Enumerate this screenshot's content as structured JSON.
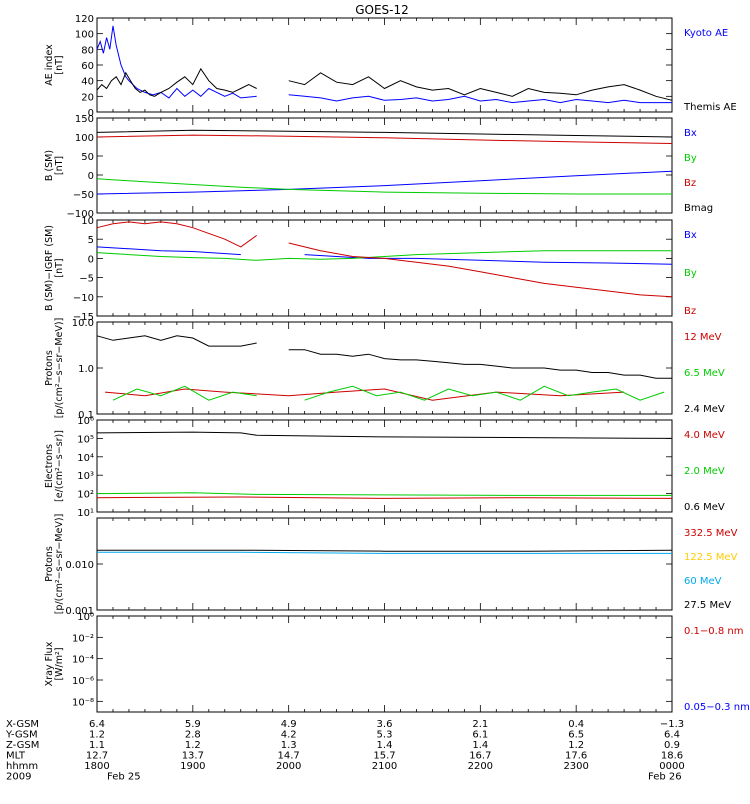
{
  "chart_data": {
    "type": "line",
    "title": "GOES-12",
    "panels": [
      {
        "id": "ae",
        "ylabel": [
          "AE index",
          "[nT]"
        ],
        "yscale": "linear",
        "ylim": [
          0,
          120
        ],
        "yticks": [
          {
            "v": 0,
            "t": "0"
          },
          {
            "v": 20,
            "t": "20"
          },
          {
            "v": 40,
            "t": "40"
          },
          {
            "v": 60,
            "t": "60"
          },
          {
            "v": 80,
            "t": "80"
          },
          {
            "v": 100,
            "t": "100"
          },
          {
            "v": 120,
            "t": "120"
          }
        ],
        "series": [
          {
            "name": "Kyoto AE",
            "color": "#0000ff",
            "x": [
              0,
              2,
              4,
              6,
              8,
              10,
              12,
              15,
              18,
              20,
              25,
              30,
              35,
              40,
              45,
              50,
              55,
              60,
              65,
              70,
              75,
              80,
              85,
              90,
              100,
              110,
              120,
              130,
              140,
              150,
              160,
              170,
              180,
              190,
              200,
              210,
              220,
              230,
              240,
              250,
              260,
              270,
              280,
              290,
              300,
              310,
              320,
              330,
              340,
              350,
              360
            ],
            "y": [
              80,
              90,
              75,
              95,
              80,
              110,
              85,
              60,
              45,
              40,
              30,
              25,
              22,
              25,
              18,
              30,
              20,
              28,
              20,
              30,
              25,
              20,
              24,
              18,
              20,
              16,
              22,
              20,
              18,
              14,
              18,
              20,
              15,
              16,
              18,
              14,
              16,
              20,
              14,
              16,
              12,
              14,
              16,
              12,
              16,
              14,
              12,
              15,
              12,
              12,
              12
            ]
          },
          {
            "name": "Themis AE",
            "color": "#000000",
            "x": [
              0,
              3,
              6,
              9,
              12,
              15,
              18,
              21,
              24,
              27,
              30,
              33,
              36,
              40,
              45,
              50,
              55,
              60,
              65,
              70,
              75,
              80,
              85,
              90,
              95,
              100,
              110,
              120,
              130,
              140,
              150,
              160,
              170,
              180,
              190,
              200,
              210,
              220,
              230,
              240,
              250,
              260,
              270,
              280,
              290,
              300,
              310,
              320,
              330,
              340,
              350,
              360
            ],
            "y": [
              28,
              35,
              30,
              40,
              45,
              35,
              50,
              40,
              30,
              25,
              28,
              22,
              20,
              25,
              30,
              38,
              45,
              35,
              55,
              40,
              30,
              28,
              25,
              30,
              35,
              30,
              35,
              40,
              35,
              50,
              38,
              35,
              45,
              30,
              40,
              32,
              28,
              30,
              22,
              30,
              25,
              20,
              30,
              25,
              24,
              22,
              28,
              32,
              35,
              28,
              20,
              15
            ]
          }
        ]
      },
      {
        "id": "b",
        "ylabel": [
          "B (SM)",
          "[nT]"
        ],
        "yscale": "linear",
        "ylim": [
          -100,
          150
        ],
        "yticks": [
          {
            "v": -100,
            "t": "−100"
          },
          {
            "v": -50,
            "t": "−50"
          },
          {
            "v": 0,
            "t": "0"
          },
          {
            "v": 50,
            "t": "50"
          },
          {
            "v": 100,
            "t": "100"
          },
          {
            "v": 150,
            "t": "150"
          }
        ],
        "series": [
          {
            "name": "Bx",
            "color": "#0000ff",
            "x": [
              0,
              60,
              120,
              180,
              240,
              300,
              360
            ],
            "y": [
              -50,
              -45,
              -38,
              -28,
              -15,
              -2,
              10
            ]
          },
          {
            "name": "By",
            "color": "#00cc00",
            "x": [
              0,
              30,
              60,
              90,
              120,
              180,
              240,
              300,
              360
            ],
            "y": [
              -10,
              -18,
              -25,
              -32,
              -38,
              -45,
              -48,
              -50,
              -50
            ]
          },
          {
            "name": "Bz",
            "color": "#cc0000",
            "x": [
              0,
              60,
              120,
              180,
              240,
              300,
              360
            ],
            "y": [
              100,
              105,
              102,
              98,
              92,
              87,
              83
            ]
          },
          {
            "name": "Bmag",
            "color": "#000000",
            "x": [
              0,
              60,
              120,
              180,
              240,
              300,
              360
            ],
            "y": [
              112,
              118,
              115,
              112,
              108,
              104,
              100
            ]
          }
        ]
      },
      {
        "id": "bdiff",
        "ylabel": [
          "B (SM)−IGRF (SM)",
          "[nT]"
        ],
        "yscale": "linear",
        "ylim": [
          -15,
          10
        ],
        "yticks": [
          {
            "v": -15,
            "t": "−15"
          },
          {
            "v": -10,
            "t": "−10"
          },
          {
            "v": -5,
            "t": "−5"
          },
          {
            "v": 0,
            "t": "0"
          },
          {
            "v": 5,
            "t": "5"
          },
          {
            "v": 10,
            "t": "10"
          }
        ],
        "series": [
          {
            "name": "Bx",
            "color": "#0000ff",
            "x": [
              0,
              20,
              40,
              60,
              90,
              110,
              130,
              150,
              170,
              200,
              240,
              280,
              320,
              360
            ],
            "y": [
              3,
              2.5,
              2,
              1.8,
              1,
              2,
              1,
              0.5,
              0,
              0,
              -0.5,
              -1,
              -1.2,
              -1.5
            ]
          },
          {
            "name": "By",
            "color": "#00cc00",
            "x": [
              0,
              20,
              40,
              60,
              80,
              100,
              120,
              140,
              160,
              180,
              200,
              240,
              280,
              320,
              360
            ],
            "y": [
              1.5,
              1,
              0.5,
              0.2,
              0,
              -0.5,
              0,
              -0.2,
              0,
              0.5,
              1,
              1.5,
              2,
              2,
              2
            ]
          },
          {
            "name": "Bz",
            "color": "#cc0000",
            "x": [
              0,
              10,
              20,
              30,
              40,
              50,
              60,
              80,
              90,
              100,
              110,
              120,
              130,
              140,
              160,
              180,
              200,
              220,
              240,
              260,
              280,
              300,
              320,
              340,
              360
            ],
            "y": [
              8,
              9,
              9.5,
              9,
              9.5,
              9,
              8,
              5,
              3,
              6,
              5,
              4,
              3,
              2,
              0.5,
              0,
              -1,
              -2,
              -3.5,
              -5,
              -6.5,
              -7.5,
              -8.5,
              -9.5,
              -10
            ]
          }
        ]
      },
      {
        "id": "protons",
        "ylabel": [
          "Protons",
          "[p/(cm²−s−sr−MeV)]"
        ],
        "yscale": "log",
        "ylim": [
          0.1,
          10
        ],
        "yticks": [
          {
            "v": 0.1,
            "t": "0.1"
          },
          {
            "v": 1,
            "t": "1.0"
          },
          {
            "v": 10,
            "t": "10.0"
          }
        ],
        "series": [
          {
            "name": "12 MeV",
            "color": "#cc0000",
            "x": [
              5,
              30,
              55,
              80,
              120,
              150,
              180,
              210,
              250,
              290,
              330
            ],
            "y": [
              0.3,
              0.25,
              0.35,
              0.3,
              0.25,
              0.3,
              0.35,
              0.2,
              0.3,
              0.25,
              0.3
            ]
          },
          {
            "name": "6.5 MeV",
            "color": "#00cc00",
            "x": [
              10,
              25,
              40,
              55,
              70,
              85,
              100,
              115,
              130,
              145,
              160,
              175,
              190,
              205,
              220,
              235,
              250,
              265,
              280,
              295,
              310,
              325,
              340,
              355
            ],
            "y": [
              0.2,
              0.35,
              0.25,
              0.4,
              0.2,
              0.3,
              0.25,
              0.35,
              0.2,
              0.3,
              0.4,
              0.25,
              0.3,
              0.2,
              0.35,
              0.25,
              0.3,
              0.2,
              0.4,
              0.25,
              0.3,
              0.35,
              0.2,
              0.3
            ]
          },
          {
            "name": "2.4 MeV",
            "color": "#000000",
            "x": [
              0,
              10,
              20,
              30,
              40,
              50,
              60,
              70,
              90,
              100,
              110,
              120,
              130,
              140,
              150,
              160,
              170,
              180,
              190,
              200,
              210,
              220,
              230,
              240,
              250,
              260,
              270,
              280,
              290,
              300,
              310,
              320,
              330,
              340,
              350,
              360
            ],
            "y": [
              5,
              4,
              4.5,
              5,
              4,
              5,
              4.5,
              3,
              3,
              3.5,
              3,
              2.5,
              2.5,
              2,
              2,
              1.8,
              2,
              1.6,
              1.5,
              1.5,
              1.4,
              1.3,
              1.2,
              1.2,
              1.1,
              1,
              1,
              1,
              0.9,
              0.9,
              0.8,
              0.8,
              0.7,
              0.7,
              0.6,
              0.6
            ]
          }
        ]
      },
      {
        "id": "electrons",
        "ylabel": [
          "Electrons",
          "[e/(cm²−s−sr)]"
        ],
        "yscale": "log",
        "ylim": [
          10,
          1000000
        ],
        "yticks": [
          {
            "v": 10,
            "t": "10¹"
          },
          {
            "v": 100,
            "t": "10²"
          },
          {
            "v": 1000,
            "t": "10³"
          },
          {
            "v": 10000,
            "t": "10⁴"
          },
          {
            "v": 100000,
            "t": "10⁵"
          },
          {
            "v": 1000000,
            "t": "10⁶"
          }
        ],
        "series": [
          {
            "name": "4.0 MeV",
            "color": "#cc0000",
            "x": [
              0,
              90,
              180,
              270,
              360
            ],
            "y": [
              60,
              65,
              55,
              60,
              55
            ]
          },
          {
            "name": "2.0 MeV",
            "color": "#00cc00",
            "x": [
              0,
              60,
              100,
              180,
              270,
              360
            ],
            "y": [
              100,
              110,
              90,
              85,
              80,
              80
            ]
          },
          {
            "name": "0.6 MeV",
            "color": "#000000",
            "x": [
              0,
              60,
              90,
              100,
              180,
              270,
              360
            ],
            "y": [
              200000,
              220000,
              200000,
              150000,
              120000,
              110000,
              100000
            ]
          }
        ]
      },
      {
        "id": "hiprotons",
        "ylabel": [
          "Protons",
          "[p/(cm²−s−sr−MeV)]"
        ],
        "yscale": "log",
        "ylim": [
          0.001,
          0.1
        ],
        "yticks": [
          {
            "v": 0.001,
            "t": "0.001"
          },
          {
            "v": 0.01,
            "t": "0.010"
          },
          {
            "v": 0.1,
            "t": ""
          }
        ],
        "series": [
          {
            "name": "332.5 MeV",
            "color": "#cc0000",
            "x": [],
            "y": []
          },
          {
            "name": "122.5 MeV",
            "color": "#ffcc00",
            "x": [],
            "y": []
          },
          {
            "name": "60 MeV",
            "color": "#00aaee",
            "x": [
              0,
              90,
              180,
              270,
              360
            ],
            "y": [
              0.018,
              0.018,
              0.017,
              0.017,
              0.017
            ]
          },
          {
            "name": "27.5 MeV",
            "color": "#000000",
            "x": [
              0,
              90,
              180,
              270,
              360
            ],
            "y": [
              0.02,
              0.02,
              0.019,
              0.019,
              0.02
            ]
          }
        ]
      },
      {
        "id": "xray",
        "ylabel": [
          "Xray Flux",
          "[W/m²]"
        ],
        "yscale": "log",
        "ylim": [
          1e-09,
          1
        ],
        "yticks": [
          {
            "v": 1,
            "t": "10⁰"
          },
          {
            "v": 0.01,
            "t": "10⁻²"
          },
          {
            "v": 0.0001,
            "t": "10⁻⁴"
          },
          {
            "v": 1e-06,
            "t": "10⁻⁶"
          },
          {
            "v": 1e-08,
            "t": "10⁻⁸"
          }
        ],
        "series": [
          {
            "name": "0.1−0.8 nm",
            "color": "#cc0000",
            "x": [],
            "y": []
          },
          {
            "name": "0.05−0.3 nm",
            "color": "#0000ff",
            "x": [],
            "y": []
          }
        ]
      }
    ],
    "data_gap": [
      108,
      118
    ],
    "xaxis": {
      "row_labels": [
        "X-GSM",
        "Y-GSM",
        "Z-GSM",
        "MLT",
        "hhmm",
        "2009"
      ],
      "ticks": [
        {
          "x": 0,
          "vals": [
            "6.4",
            "1.2",
            "1.1",
            "12.7",
            "1800",
            "Feb 25"
          ]
        },
        {
          "x": 60,
          "vals": [
            "5.9",
            "2.8",
            "1.2",
            "13.7",
            "1900",
            ""
          ]
        },
        {
          "x": 120,
          "vals": [
            "4.9",
            "4.2",
            "1.3",
            "14.7",
            "2000",
            ""
          ]
        },
        {
          "x": 180,
          "vals": [
            "3.6",
            "5.3",
            "1.4",
            "15.7",
            "2100",
            ""
          ]
        },
        {
          "x": 240,
          "vals": [
            "2.1",
            "6.1",
            "1.4",
            "16.7",
            "2200",
            ""
          ]
        },
        {
          "x": 300,
          "vals": [
            "0.4",
            "6.5",
            "1.2",
            "17.6",
            "2300",
            ""
          ]
        },
        {
          "x": 360,
          "vals": [
            "−1.3",
            "6.4",
            "0.9",
            "18.6",
            "0000",
            "Feb 26"
          ]
        }
      ]
    }
  }
}
